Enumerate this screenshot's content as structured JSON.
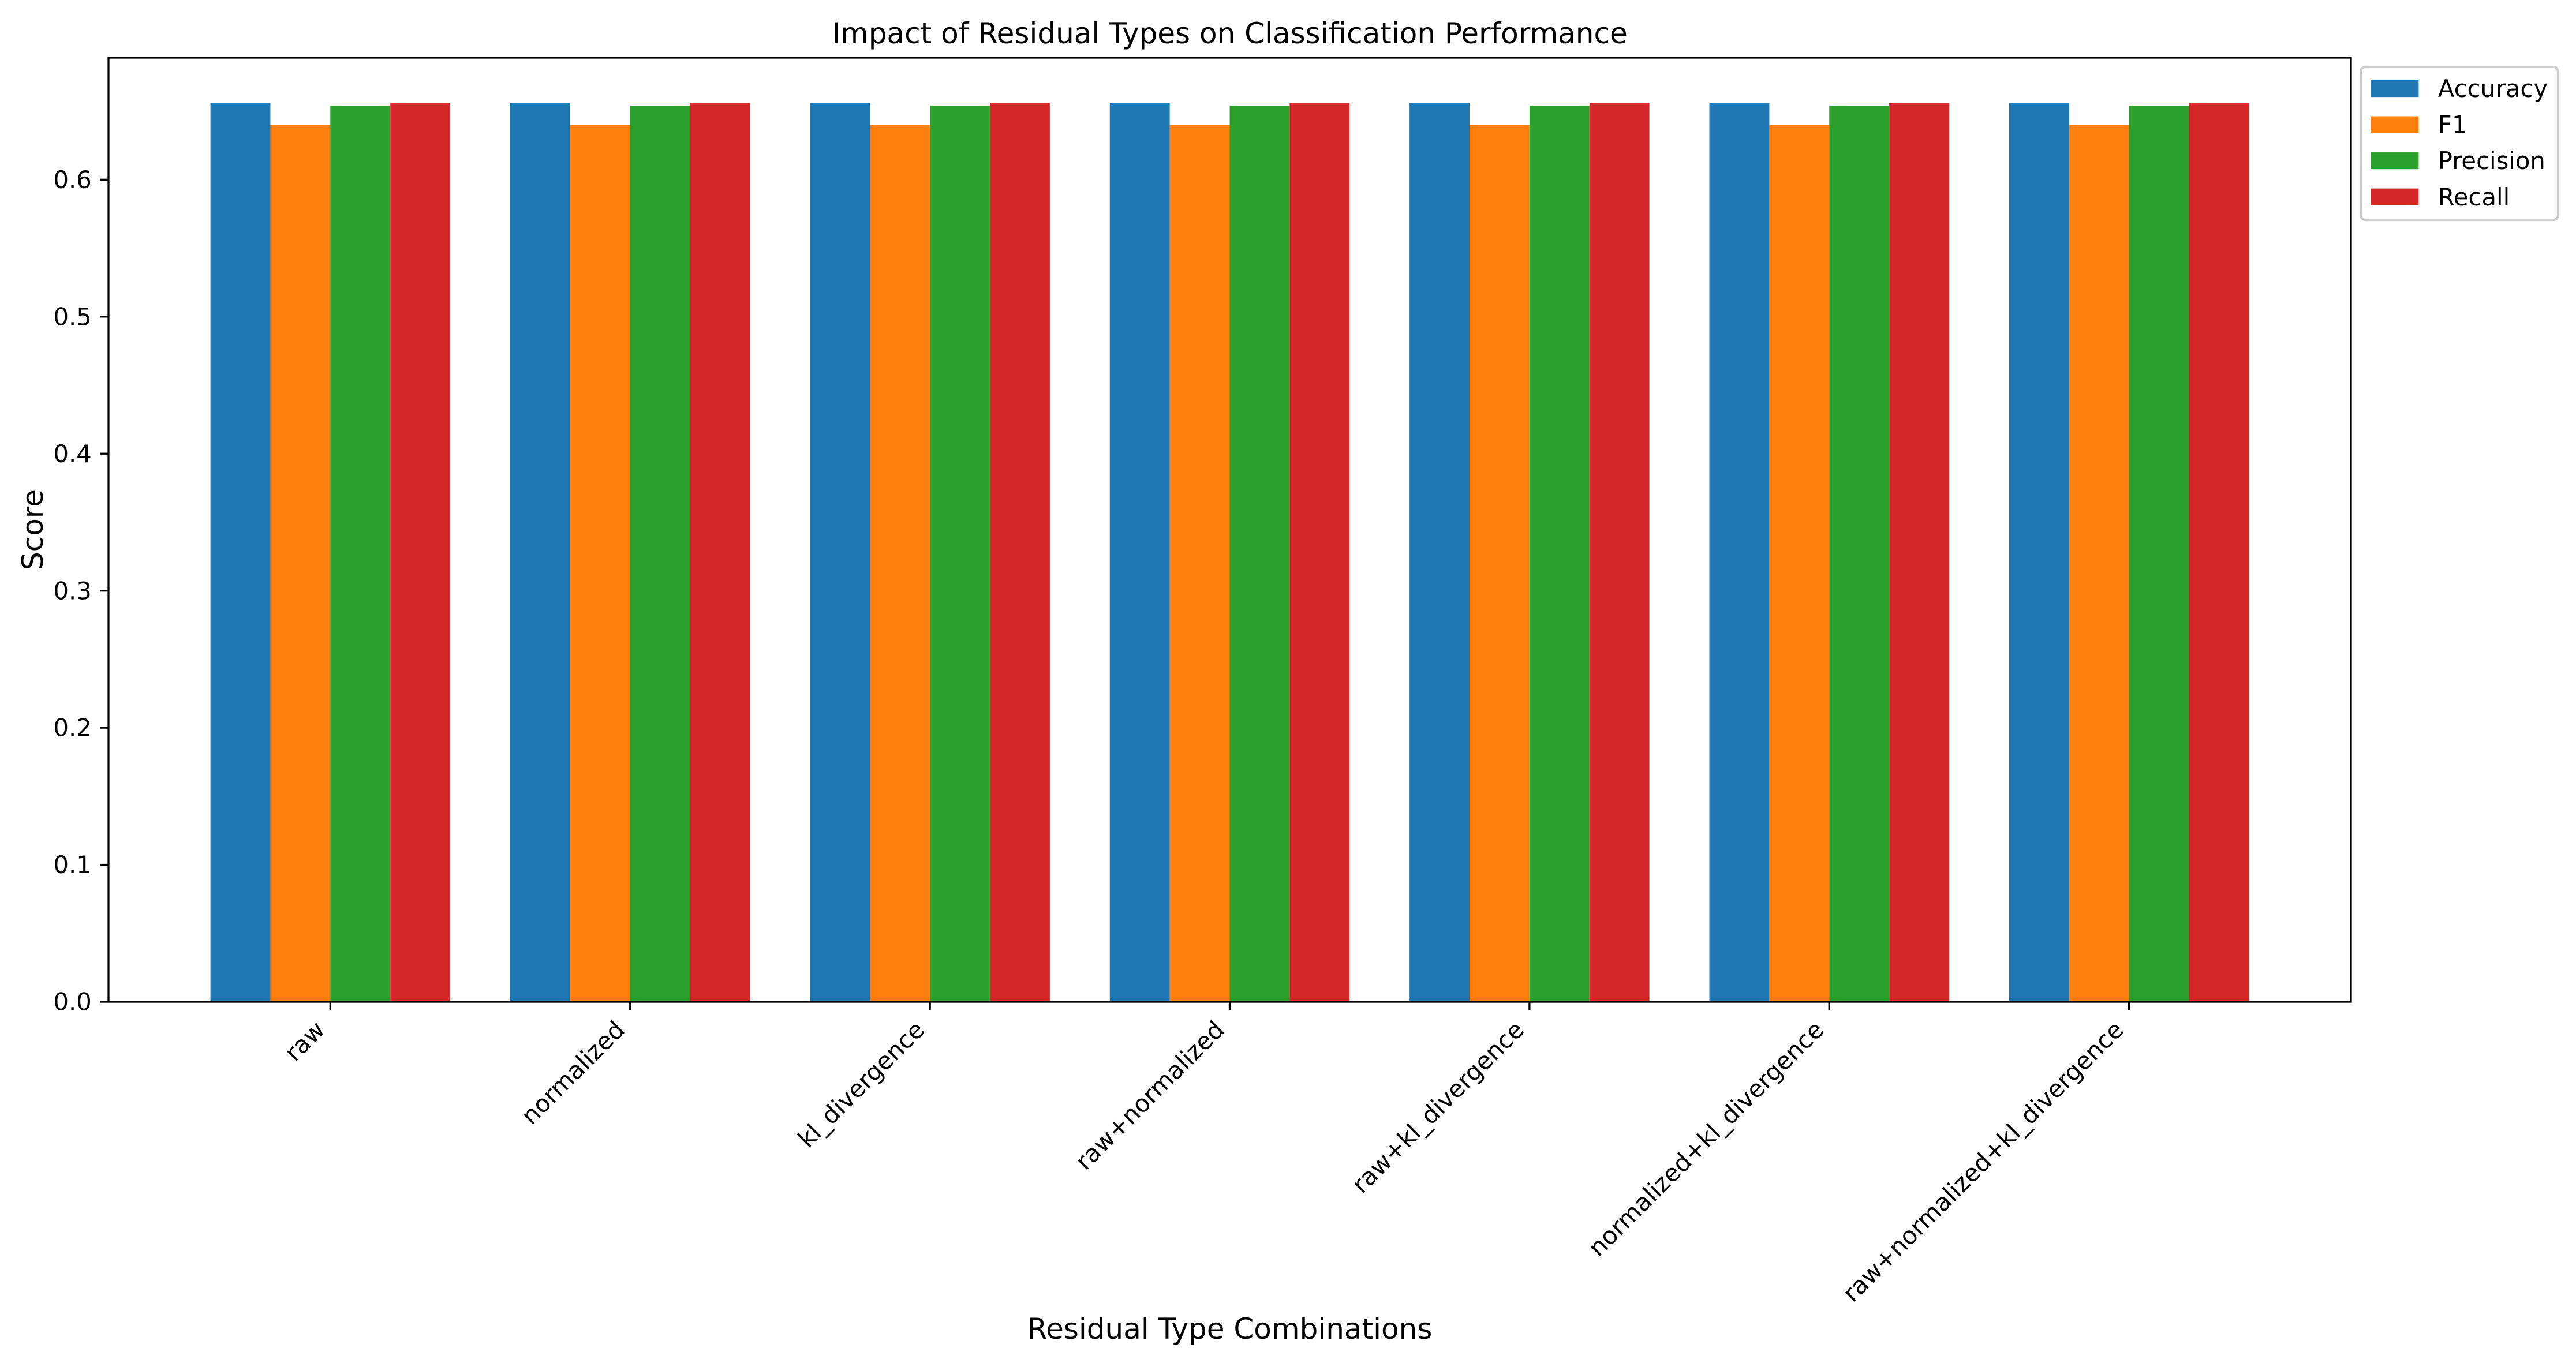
{
  "chart_data": {
    "type": "bar",
    "title": "Impact of Residual Types on Classification Performance",
    "xlabel": "Residual Type Combinations",
    "ylabel": "Score",
    "categories": [
      "raw",
      "normalized",
      "kl_divergence",
      "raw+normalized",
      "raw+kl_divergence",
      "normalized+kl_divergence",
      "raw+normalized+kl_divergence"
    ],
    "series": [
      {
        "name": "Accuracy",
        "color": "#1f77b4",
        "values": [
          0.656,
          0.656,
          0.656,
          0.656,
          0.656,
          0.656,
          0.656
        ]
      },
      {
        "name": "F1",
        "color": "#ff7f0e",
        "values": [
          0.64,
          0.64,
          0.64,
          0.64,
          0.64,
          0.64,
          0.64
        ]
      },
      {
        "name": "Precision",
        "color": "#2ca02c",
        "values": [
          0.654,
          0.654,
          0.654,
          0.654,
          0.654,
          0.654,
          0.654
        ]
      },
      {
        "name": "Recall",
        "color": "#d62728",
        "values": [
          0.656,
          0.656,
          0.656,
          0.656,
          0.656,
          0.656,
          0.656
        ]
      }
    ],
    "ylim": [
      0,
      0.689
    ],
    "yticks": [
      "0.0",
      "0.1",
      "0.2",
      "0.3",
      "0.4",
      "0.5",
      "0.6"
    ],
    "grid": false,
    "legend": {
      "placement": "outside-upper-right"
    }
  }
}
